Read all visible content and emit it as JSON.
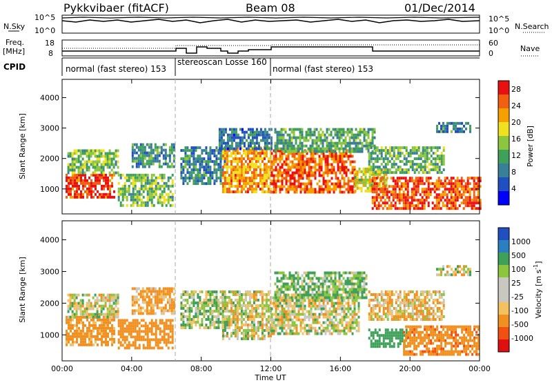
{
  "header": {
    "radar": "Pykkvibaer (fitACF)",
    "beam": "Beam 08",
    "date": "01/Dec/2014"
  },
  "top_panels": {
    "nsky": {
      "label": "N.Sky",
      "ticks": [
        "10^5",
        "10^0"
      ]
    },
    "nsearch": {
      "label": "N.Search",
      "ticks": [
        "10^5",
        "10^0"
      ]
    },
    "freq": {
      "label_line1": "Freq.",
      "label_line2": "[MHz]",
      "ticks": [
        "18",
        "8"
      ]
    },
    "nave": {
      "label": "Nave",
      "ticks": [
        "60",
        "0"
      ]
    },
    "cpid": {
      "label": "CPID",
      "segments": [
        {
          "name": "normal (fast stereo)",
          "id": "153",
          "start_hour": 0,
          "end_hour": 6.6
        },
        {
          "name": "stereoscan Losse",
          "id": "160",
          "start_hour": 6.6,
          "end_hour": 12.0
        },
        {
          "name": "normal (fast stereo)",
          "id": "153",
          "start_hour": 12.0,
          "end_hour": 24.0
        }
      ]
    }
  },
  "x_axis": {
    "label": "Time UT",
    "ticks": [
      "00:00",
      "04:00",
      "08:00",
      "12:00",
      "16:00",
      "20:00",
      "00:00"
    ],
    "range_hours": [
      0,
      24
    ]
  },
  "chart_data": [
    {
      "type": "heatmap",
      "name": "power",
      "ylabel": "Slant Range [km]",
      "ylim": [
        180,
        4600
      ],
      "yticks": [
        "1000",
        "2000",
        "3000",
        "4000"
      ],
      "colorbar_label": "Power [dB]",
      "colorbar_ticks": [
        "28",
        "24",
        "20",
        "16",
        "12",
        "8",
        "4"
      ],
      "colorbar_range": [
        0,
        30
      ],
      "colors": [
        "#0000ff",
        "#2050c0",
        "#3a7f9a",
        "#3fa05a",
        "#8cc63f",
        "#f0e020",
        "#f5a000",
        "#f06010",
        "#e81010"
      ],
      "regions": [
        {
          "t0": 0.2,
          "t1": 3.0,
          "r0": 700,
          "r1": 1500,
          "power": 27
        },
        {
          "t0": 0.3,
          "t1": 3.2,
          "r0": 1500,
          "r1": 2300,
          "power": 14
        },
        {
          "t0": 3.2,
          "t1": 6.4,
          "r0": 500,
          "r1": 1500,
          "power": 14
        },
        {
          "t0": 4.0,
          "t1": 6.4,
          "r0": 1700,
          "r1": 2500,
          "power": 10
        },
        {
          "t0": 6.8,
          "t1": 9.3,
          "r0": 1200,
          "r1": 2400,
          "power": 9
        },
        {
          "t0": 9.2,
          "t1": 12.0,
          "r0": 900,
          "r1": 2400,
          "power": 22
        },
        {
          "t0": 9.0,
          "t1": 12.0,
          "r0": 2300,
          "r1": 3000,
          "power": 8
        },
        {
          "t0": 12.0,
          "t1": 16.8,
          "r0": 900,
          "r1": 2300,
          "power": 25
        },
        {
          "t0": 12.2,
          "t1": 18.0,
          "r0": 2200,
          "r1": 3000,
          "power": 12
        },
        {
          "t0": 16.8,
          "t1": 18.6,
          "r0": 900,
          "r1": 1700,
          "power": 18
        },
        {
          "t0": 17.8,
          "t1": 24.0,
          "r0": 400,
          "r1": 1400,
          "power": 26
        },
        {
          "t0": 17.6,
          "t1": 22.0,
          "r0": 1500,
          "r1": 2400,
          "power": 13
        },
        {
          "t0": 21.5,
          "t1": 23.5,
          "r0": 2900,
          "r1": 3200,
          "power": 9
        }
      ]
    },
    {
      "type": "heatmap",
      "name": "velocity",
      "ylabel": "Slant Range [km]",
      "ylim": [
        180,
        4600
      ],
      "yticks": [
        "1000",
        "2000",
        "3000",
        "4000"
      ],
      "colorbar_label": "Velocity [m s",
      "colorbar_label_sup": "-1",
      "colorbar_ticks": [
        "1000",
        "500",
        "100",
        "25",
        "-25",
        "-100",
        "-500",
        "-1000"
      ],
      "colors": [
        "#e01010",
        "#f05010",
        "#f09020",
        "#f5c060",
        "#c8c8c0",
        "#c8c8c0",
        "#8cc63f",
        "#3fa05a",
        "#2a7fc0",
        "#2050c0"
      ],
      "regions": [
        {
          "t0": 0.2,
          "t1": 3.0,
          "r0": 700,
          "r1": 1600,
          "velocity": -200
        },
        {
          "t0": 0.3,
          "t1": 3.2,
          "r0": 1600,
          "r1": 2300,
          "velocity": 0
        },
        {
          "t0": 3.2,
          "t1": 6.4,
          "r0": 600,
          "r1": 1500,
          "velocity": -300
        },
        {
          "t0": 4.0,
          "t1": 6.4,
          "r0": 1700,
          "r1": 2500,
          "velocity": -150
        },
        {
          "t0": 6.8,
          "t1": 9.3,
          "r0": 1200,
          "r1": 2400,
          "velocity": 50
        },
        {
          "t0": 9.2,
          "t1": 12.0,
          "r0": 900,
          "r1": 2400,
          "velocity": 0
        },
        {
          "t0": 12.0,
          "t1": 17.0,
          "r0": 1000,
          "r1": 2300,
          "velocity": 0
        },
        {
          "t0": 12.2,
          "t1": 17.5,
          "r0": 2200,
          "r1": 3000,
          "velocity": 100
        },
        {
          "t0": 17.6,
          "t1": 19.8,
          "r0": 600,
          "r1": 1200,
          "velocity": 300
        },
        {
          "t0": 19.6,
          "t1": 24.0,
          "r0": 400,
          "r1": 1300,
          "velocity": -400
        },
        {
          "t0": 17.6,
          "t1": 22.0,
          "r0": 1500,
          "r1": 2400,
          "velocity": -80
        },
        {
          "t0": 21.5,
          "t1": 23.5,
          "r0": 2900,
          "r1": 3200,
          "velocity": 0
        }
      ]
    }
  ]
}
